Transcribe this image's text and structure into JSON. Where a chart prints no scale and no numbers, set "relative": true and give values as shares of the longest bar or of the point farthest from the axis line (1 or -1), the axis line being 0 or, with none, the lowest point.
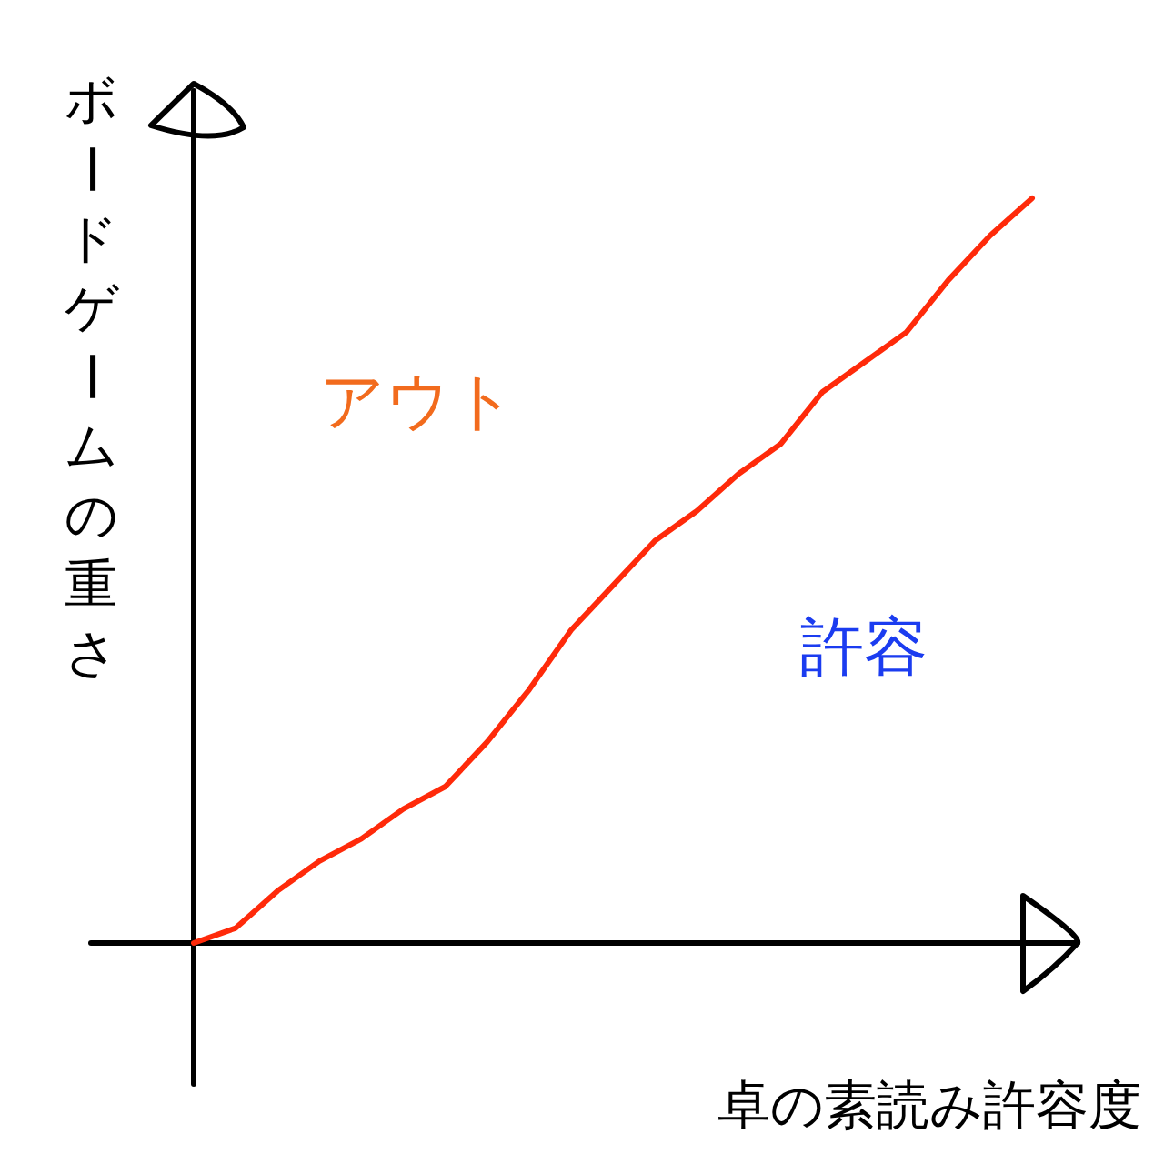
{
  "chart_data": {
    "type": "line",
    "relative": true,
    "xlabel": "卓の素読み許容度",
    "ylabel": "ボードゲームの重さ",
    "categories": [
      null,
      null,
      null,
      null,
      null,
      null,
      null,
      null,
      null,
      null,
      null,
      null,
      null,
      null,
      null,
      null,
      null,
      null,
      null,
      null,
      null
    ],
    "values": [
      0,
      0.02,
      0.07,
      0.11,
      0.14,
      0.18,
      0.21,
      0.27,
      0.34,
      0.42,
      0.48,
      0.54,
      0.58,
      0.63,
      0.67,
      0.74,
      0.78,
      0.82,
      0.89,
      0.95,
      1.0
    ],
    "color": "#ff2a0a",
    "annotations": [
      "アウト",
      "許容"
    ]
  }
}
